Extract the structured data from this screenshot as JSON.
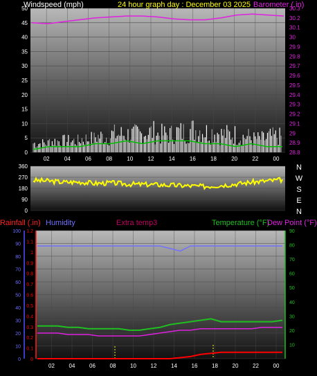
{
  "page": {
    "title": "24 hour graph day : December 03 2025"
  },
  "colors": {
    "background": "#000000",
    "grid": "#4a4a4a",
    "wind_avg": "#00c000",
    "wind_gust": "#ffffff",
    "wind_gray": "#a0a0a0",
    "barometer": "#e020e0",
    "direction": "#ffff00",
    "humidity": "#7070ff",
    "temperature": "#20c020",
    "dew_point": "#e020e0",
    "rain": "#ff0000",
    "extra_temp": "#c00060",
    "title": "#ffff00",
    "axis_text": "#ffffff"
  },
  "chart_data": [
    {
      "id": "wind_barometer",
      "type": "line",
      "title": "24 hour graph day : December 03 2025",
      "left_axis_label": "Windspeed (mph)",
      "right_axis_label": "Barometer (.in)",
      "left_ylim": [
        0,
        50
      ],
      "left_ticks": [
        "0",
        "5",
        "10",
        "15",
        "20",
        "25",
        "30",
        "35",
        "40",
        "45",
        "50"
      ],
      "right_ylim": [
        28.8,
        30.3
      ],
      "right_ticks": [
        "28.8",
        "28.9",
        "29",
        "29.1",
        "29.2",
        "29.3",
        "29.4",
        "29.5",
        "29.6",
        "29.7",
        "29.8",
        "29.9",
        "30",
        "30.1",
        "30.2",
        "30.3"
      ],
      "x_ticks": [
        "02",
        "04",
        "06",
        "08",
        "10",
        "12",
        "14",
        "16",
        "18",
        "20",
        "22",
        "00"
      ],
      "grid": true,
      "series": [
        {
          "key": "barometer",
          "axis": "right",
          "values": [
            30.15,
            30.14,
            30.16,
            30.18,
            30.2,
            30.21,
            30.22,
            30.22,
            30.21,
            30.19,
            30.18,
            30.18,
            30.2,
            30.23,
            30.24,
            30.23,
            30.22
          ]
        },
        {
          "key": "wind_gust",
          "axis": "left",
          "values": [
            4,
            5,
            5,
            6,
            7,
            8,
            8,
            9,
            8,
            9,
            10,
            9,
            8,
            7,
            6,
            7,
            5
          ]
        },
        {
          "key": "wind_avg",
          "axis": "left",
          "values": [
            1,
            2,
            2,
            2,
            3,
            3,
            4,
            3,
            4,
            4,
            4,
            3,
            3,
            2,
            3,
            2,
            2
          ]
        }
      ]
    },
    {
      "id": "wind_direction",
      "type": "line",
      "left_ylim": [
        0,
        360
      ],
      "left_ticks": [
        "0",
        "90",
        "180",
        "270",
        "360"
      ],
      "compass": [
        "N",
        "W",
        "S",
        "E",
        "N"
      ],
      "grid": true,
      "series": [
        {
          "key": "direction",
          "axis": "left",
          "values": [
            245,
            240,
            230,
            232,
            220,
            225,
            215,
            212,
            210,
            205,
            200,
            195,
            205,
            215,
            230,
            240,
            250
          ]
        }
      ]
    },
    {
      "id": "temp_humidity_rain",
      "type": "line",
      "labels": {
        "rainfall": "Rainfall (.in)",
        "humidity": "Humidity",
        "extra_temp": "Extra temp3",
        "temperature": "Temperature (°F)",
        "dew_point": "Dew Point (°F)"
      },
      "humidity_ylim": [
        0,
        100
      ],
      "humidity_ticks": [
        "0",
        "10",
        "20",
        "30",
        "40",
        "50",
        "60",
        "70",
        "80",
        "90",
        "100"
      ],
      "rain_ylim": [
        0,
        1.2
      ],
      "rain_ticks": [
        "0",
        "0.1",
        "0.2",
        "0.3",
        "0.4",
        "0.5",
        "0.6",
        "0.7",
        "0.8",
        "0.9",
        "1",
        "1.1",
        "1.2"
      ],
      "temp_ylim": [
        0,
        90
      ],
      "temp_ticks": [
        "10",
        "20",
        "30",
        "40",
        "50",
        "60",
        "70",
        "80",
        "90"
      ],
      "x_ticks": [
        "02",
        "04",
        "06",
        "08",
        "10",
        "12",
        "14",
        "16",
        "18",
        "20",
        "22",
        "00"
      ],
      "grid": true,
      "series": [
        {
          "key": "humidity",
          "axis": "humidity",
          "values": [
            88,
            88,
            88,
            88,
            88,
            88,
            88,
            88,
            88,
            88,
            88,
            88,
            88,
            86,
            84,
            88,
            88,
            88,
            88,
            88,
            88,
            88,
            88,
            88,
            88
          ]
        },
        {
          "key": "temperature",
          "axis": "temp",
          "values": [
            23,
            23,
            23,
            22,
            22,
            21,
            21,
            21,
            21,
            20,
            20,
            21,
            22,
            24,
            25,
            26,
            27,
            28,
            26,
            26,
            26,
            26,
            26,
            26,
            27
          ]
        },
        {
          "key": "dew_point",
          "axis": "temp",
          "values": [
            18,
            18,
            18,
            17,
            17,
            17,
            16,
            16,
            16,
            16,
            16,
            17,
            18,
            19,
            20,
            20,
            21,
            21,
            21,
            21,
            21,
            21,
            22,
            22,
            22
          ]
        },
        {
          "key": "rain",
          "axis": "rain",
          "values": [
            0,
            0,
            0,
            0,
            0,
            0,
            0,
            0,
            0,
            0,
            0,
            0,
            0,
            0,
            0.01,
            0.02,
            0.04,
            0.05,
            0.06,
            0.06,
            0.06,
            0.06,
            0.06,
            0.06,
            0.06
          ]
        }
      ]
    }
  ]
}
